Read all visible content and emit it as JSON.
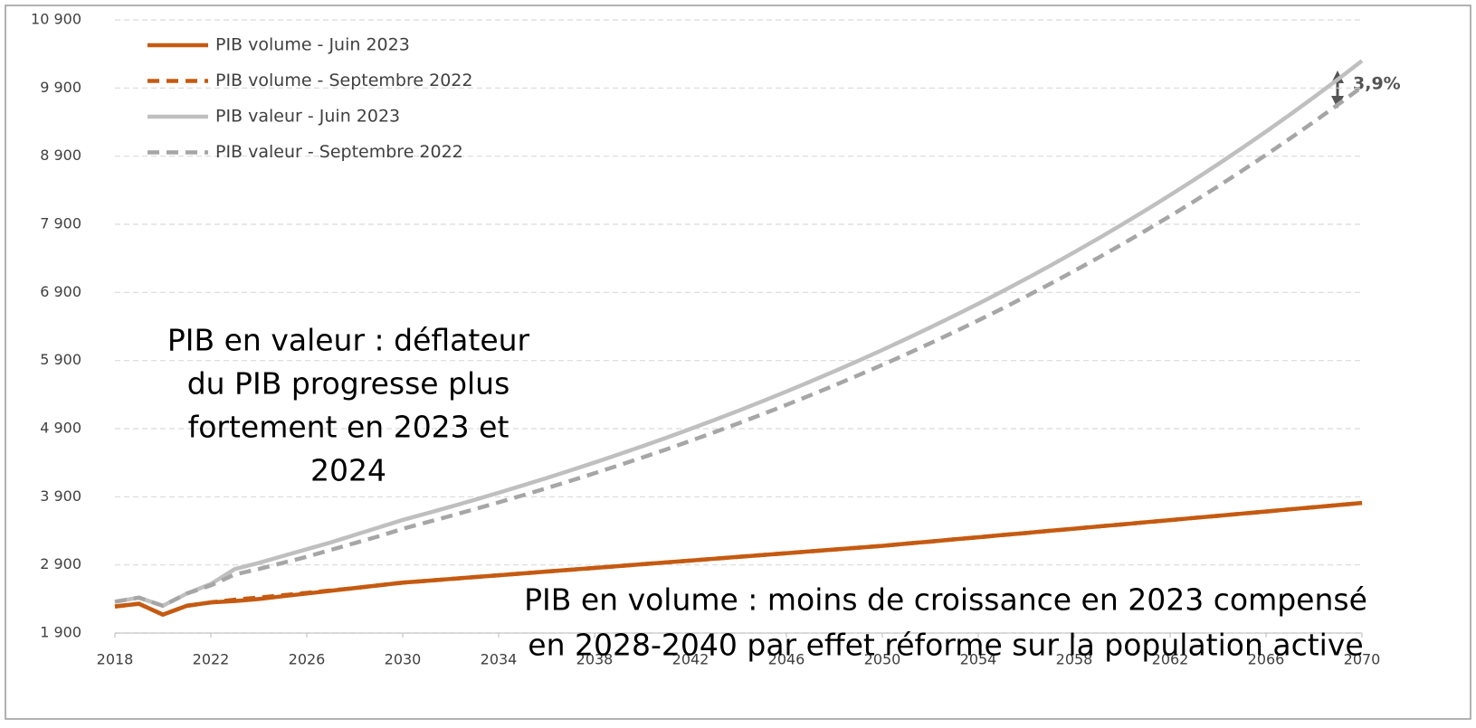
{
  "chart_data": {
    "type": "line",
    "x": [
      2018,
      2019,
      2020,
      2021,
      2022,
      2023,
      2024,
      2025,
      2026,
      2027,
      2028,
      2029,
      2030,
      2031,
      2032,
      2033,
      2034,
      2035,
      2036,
      2037,
      2038,
      2039,
      2040,
      2041,
      2042,
      2043,
      2044,
      2045,
      2046,
      2047,
      2048,
      2049,
      2050,
      2051,
      2052,
      2053,
      2054,
      2055,
      2056,
      2057,
      2058,
      2059,
      2060,
      2061,
      2062,
      2063,
      2064,
      2065,
      2066,
      2067,
      2068,
      2069,
      2070
    ],
    "series": [
      {
        "name": "PIB volume - Juin 2023",
        "color": "#c55a11",
        "dash": false,
        "values": [
          2290,
          2330,
          2170,
          2300,
          2350,
          2370,
          2400,
          2440,
          2480,
          2520,
          2560,
          2600,
          2640,
          2667,
          2694,
          2721,
          2748,
          2775,
          2802,
          2829,
          2856,
          2883,
          2910,
          2937,
          2964,
          2991,
          3018,
          3045,
          3072,
          3099,
          3126,
          3153,
          3180,
          3212,
          3243,
          3275,
          3306,
          3338,
          3369,
          3401,
          3432,
          3464,
          3495,
          3527,
          3558,
          3590,
          3621,
          3653,
          3684,
          3716,
          3747,
          3779,
          3810
        ]
      },
      {
        "name": "PIB volume - Septembre 2022",
        "color": "#c55a11",
        "dash": true,
        "values": [
          2290,
          2330,
          2170,
          2300,
          2350,
          2390,
          2420,
          2455,
          2490,
          2525,
          2560,
          2600,
          2640,
          2667,
          2694,
          2721,
          2748,
          2775,
          2802,
          2829,
          2856,
          2883,
          2910,
          2937,
          2964,
          2991,
          3018,
          3045,
          3072,
          3099,
          3126,
          3153,
          3180,
          3212,
          3243,
          3275,
          3306,
          3338,
          3369,
          3401,
          3432,
          3464,
          3495,
          3527,
          3558,
          3590,
          3621,
          3653,
          3684,
          3716,
          3747,
          3779,
          3810
        ]
      },
      {
        "name": "PIB valeur - Juin 2023",
        "color": "#bfbfbf",
        "dash": false,
        "values": [
          2360,
          2420,
          2300,
          2480,
          2620,
          2840,
          2930,
          3030,
          3130,
          3230,
          3340,
          3450,
          3560,
          3656,
          3754,
          3855,
          3959,
          4066,
          4175,
          4288,
          4403,
          4521,
          4643,
          4768,
          4896,
          5028,
          5163,
          5302,
          5445,
          5592,
          5742,
          5897,
          6055,
          6218,
          6386,
          6558,
          6734,
          6915,
          7101,
          7292,
          7489,
          7690,
          7897,
          8110,
          8328,
          8552,
          8782,
          9019,
          9261,
          9510,
          9766,
          10029,
          10299
        ]
      },
      {
        "name": "PIB valeur - Septembre 2022",
        "color": "#a6a6a6",
        "dash": true,
        "values": [
          2360,
          2420,
          2300,
          2480,
          2600,
          2760,
          2840,
          2930,
          3020,
          3120,
          3220,
          3320,
          3430,
          3525,
          3620,
          3718,
          3818,
          3921,
          4026,
          4135,
          4246,
          4360,
          4477,
          4597,
          4721,
          4848,
          4978,
          5112,
          5249,
          5390,
          5535,
          5684,
          5836,
          5993,
          6154,
          6319,
          6489,
          6663,
          6842,
          7026,
          7215,
          7408,
          7607,
          7812,
          8021,
          8237,
          8458,
          8686,
          8919,
          9159,
          9405,
          9657,
          9917
        ]
      }
    ],
    "xlim": [
      2018,
      2070
    ],
    "xticks": [
      2018,
      2022,
      2026,
      2030,
      2034,
      2038,
      2042,
      2046,
      2050,
      2054,
      2058,
      2062,
      2066,
      2070
    ],
    "ylim": [
      1900,
      10900
    ],
    "yticks": [
      {
        "value": 1900,
        "label": "1 900"
      },
      {
        "value": 2900,
        "label": "2 900"
      },
      {
        "value": 3900,
        "label": "3 900"
      },
      {
        "value": 4900,
        "label": "4 900"
      },
      {
        "value": 5900,
        "label": "5 900"
      },
      {
        "value": 6900,
        "label": "6 900"
      },
      {
        "value": 7900,
        "label": "7 900"
      },
      {
        "value": 8900,
        "label": "8 900"
      },
      {
        "value": 9900,
        "label": "9 900"
      },
      {
        "value": 10900,
        "label": "10 900"
      }
    ],
    "grid": true,
    "legend": "top-left",
    "annotations": {
      "gap": "3,9%",
      "valeur": [
        "PIB en valeur : déflateur",
        "du PIB progresse plus",
        "fortement en 2023 et",
        "2024"
      ],
      "volume": [
        "PIB en volume : moins de croissance en 2023 compensé",
        "en 2028-2040 par effet réforme sur la population active"
      ]
    }
  }
}
